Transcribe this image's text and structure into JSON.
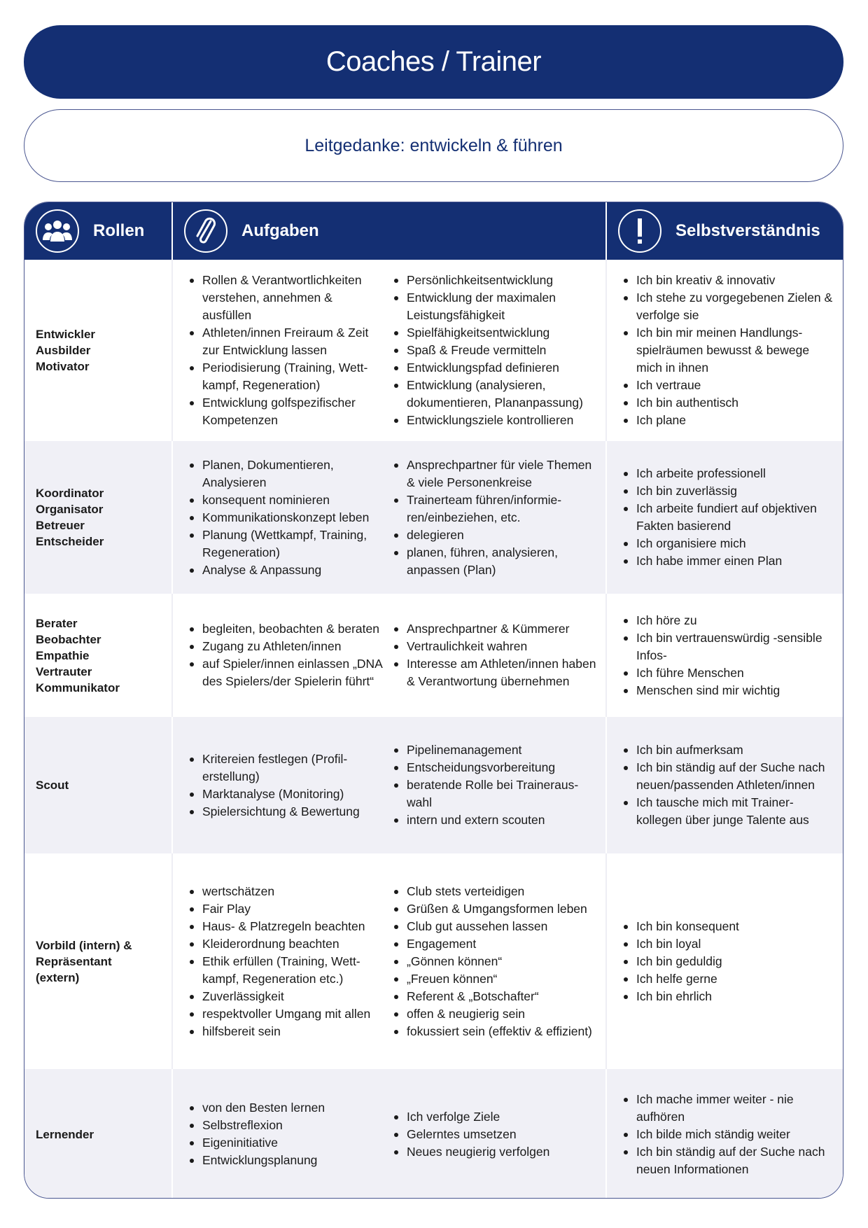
{
  "title": "Coaches / Trainer",
  "motto": "Leitgedanke: entwickeln & führen",
  "colors": {
    "brand": "#142f73",
    "row_alt": "#f0f0f6"
  },
  "headers": [
    {
      "label": "Rollen",
      "icon": "group-icon"
    },
    {
      "label": "Aufgaben",
      "icon": "paperclip-icon"
    },
    {
      "label": "Selbstverständnis",
      "icon": "exclamation-icon"
    }
  ],
  "rows": [
    {
      "role": "Entwickler\nAusbilder\nMotivator",
      "tasks_a": [
        "Rollen & Verantwortlichkeiten verstehen, annehmen & ausfüllen",
        "Athleten/innen Freiraum & Zeit zur Entwicklung lassen",
        "Periodisierung (Training, Wett-kampf, Regeneration)",
        "Entwicklung golfspezifischer Kompetenzen"
      ],
      "tasks_b": [
        "Persönlichkeitsentwicklung",
        "Entwicklung der maximalen Leistungsfähigkeit",
        "Spielfähigkeitsentwicklung",
        "Spaß & Freude vermitteln",
        "Entwicklungspfad definieren",
        "Entwicklung (analysieren, dokumentieren, Plananpassung)",
        "Entwicklungsziele kontrollieren"
      ],
      "self": [
        "Ich bin kreativ & innovativ",
        "Ich stehe zu vorgegebenen Zielen & verfolge sie",
        "Ich bin mir meinen Handlungs-spielräumen bewusst & bewege mich in ihnen",
        "Ich vertraue",
        "Ich bin authentisch",
        "Ich plane"
      ]
    },
    {
      "role": "Koordinator\nOrganisator\nBetreuer\nEntscheider",
      "tasks_a": [
        "Planen, Dokumentieren, Analysieren",
        "konsequent nominieren",
        "Kommunikationskonzept leben",
        "Planung (Wettkampf, Training, Regeneration)",
        "Analyse & Anpassung"
      ],
      "tasks_b": [
        "Ansprechpartner für viele Themen & viele Personenkreise",
        "Trainerteam führen/informie-ren/einbeziehen, etc.",
        "delegieren",
        "planen, führen, analysieren, anpassen (Plan)"
      ],
      "self": [
        "Ich arbeite professionell",
        "Ich bin zuverlässig",
        "Ich arbeite fundiert auf objektiven Fakten basierend",
        "Ich organisiere mich",
        "Ich habe immer einen Plan"
      ]
    },
    {
      "role": "Berater\nBeobachter\nEmpathie\nVertrauter\nKommunikator",
      "tasks_a": [
        "begleiten, beobachten & beraten",
        "Zugang zu Athleten/innen",
        "auf Spieler/innen einlassen „DNA des Spielers/der Spielerin führt“"
      ],
      "tasks_b": [
        "Ansprechpartner & Kümmerer",
        "Vertraulichkeit wahren",
        "Interesse am Athleten/innen haben & Verantwortung übernehmen"
      ],
      "self": [
        "Ich höre zu",
        "Ich bin vertrauenswürdig -sensible Infos-",
        "Ich führe Menschen",
        "Menschen sind mir wichtig"
      ]
    },
    {
      "role": "Scout",
      "tasks_a": [
        "Kritereien festlegen (Profil-erstellung)",
        "Marktanalyse (Monitoring)",
        "Spielersichtung & Bewertung"
      ],
      "tasks_b": [
        "Pipelinemanagement",
        "Entscheidungsvorbereitung",
        "beratende Rolle bei Traineraus-wahl",
        "intern und extern scouten"
      ],
      "self": [
        "Ich bin aufmerksam",
        "Ich bin ständig auf der Suche nach neuen/passenden Athleten/innen",
        "Ich tausche mich mit Trainer-kollegen über junge Talente aus"
      ]
    },
    {
      "role": "Vorbild (intern) &\nRepräsentant\n(extern)",
      "tasks_a": [
        "wertschätzen",
        "Fair Play",
        "Haus- & Platzregeln beachten",
        "Kleiderordnung beachten",
        "Ethik erfüllen (Training, Wett-kampf, Regeneration etc.)",
        "Zuverlässigkeit",
        "respektvoller Umgang mit allen",
        "hilfsbereit sein"
      ],
      "tasks_b": [
        "Club stets verteidigen",
        "Grüßen & Umgangsformen leben",
        "Club gut aussehen lassen",
        "Engagement",
        "„Gönnen können“",
        "„Freuen können“",
        "Referent & „Botschafter“",
        "offen & neugierig sein",
        "fokussiert sein (effektiv & effizient)"
      ],
      "self": [
        "Ich bin konsequent",
        "Ich bin loyal",
        "Ich bin geduldig",
        "Ich helfe gerne",
        "Ich bin ehrlich"
      ]
    },
    {
      "role": "Lernender",
      "tasks_a": [
        "von den Besten lernen",
        "Selbstreflexion",
        "Eigeninitiative",
        "Entwicklungsplanung"
      ],
      "tasks_b": [
        "Ich verfolge Ziele",
        "Gelerntes umsetzen",
        "Neues neugierig verfolgen"
      ],
      "self": [
        "Ich mache immer weiter - nie aufhören",
        "Ich bilde mich ständig weiter",
        "Ich bin ständig auf der Suche nach neuen Informationen"
      ]
    }
  ]
}
